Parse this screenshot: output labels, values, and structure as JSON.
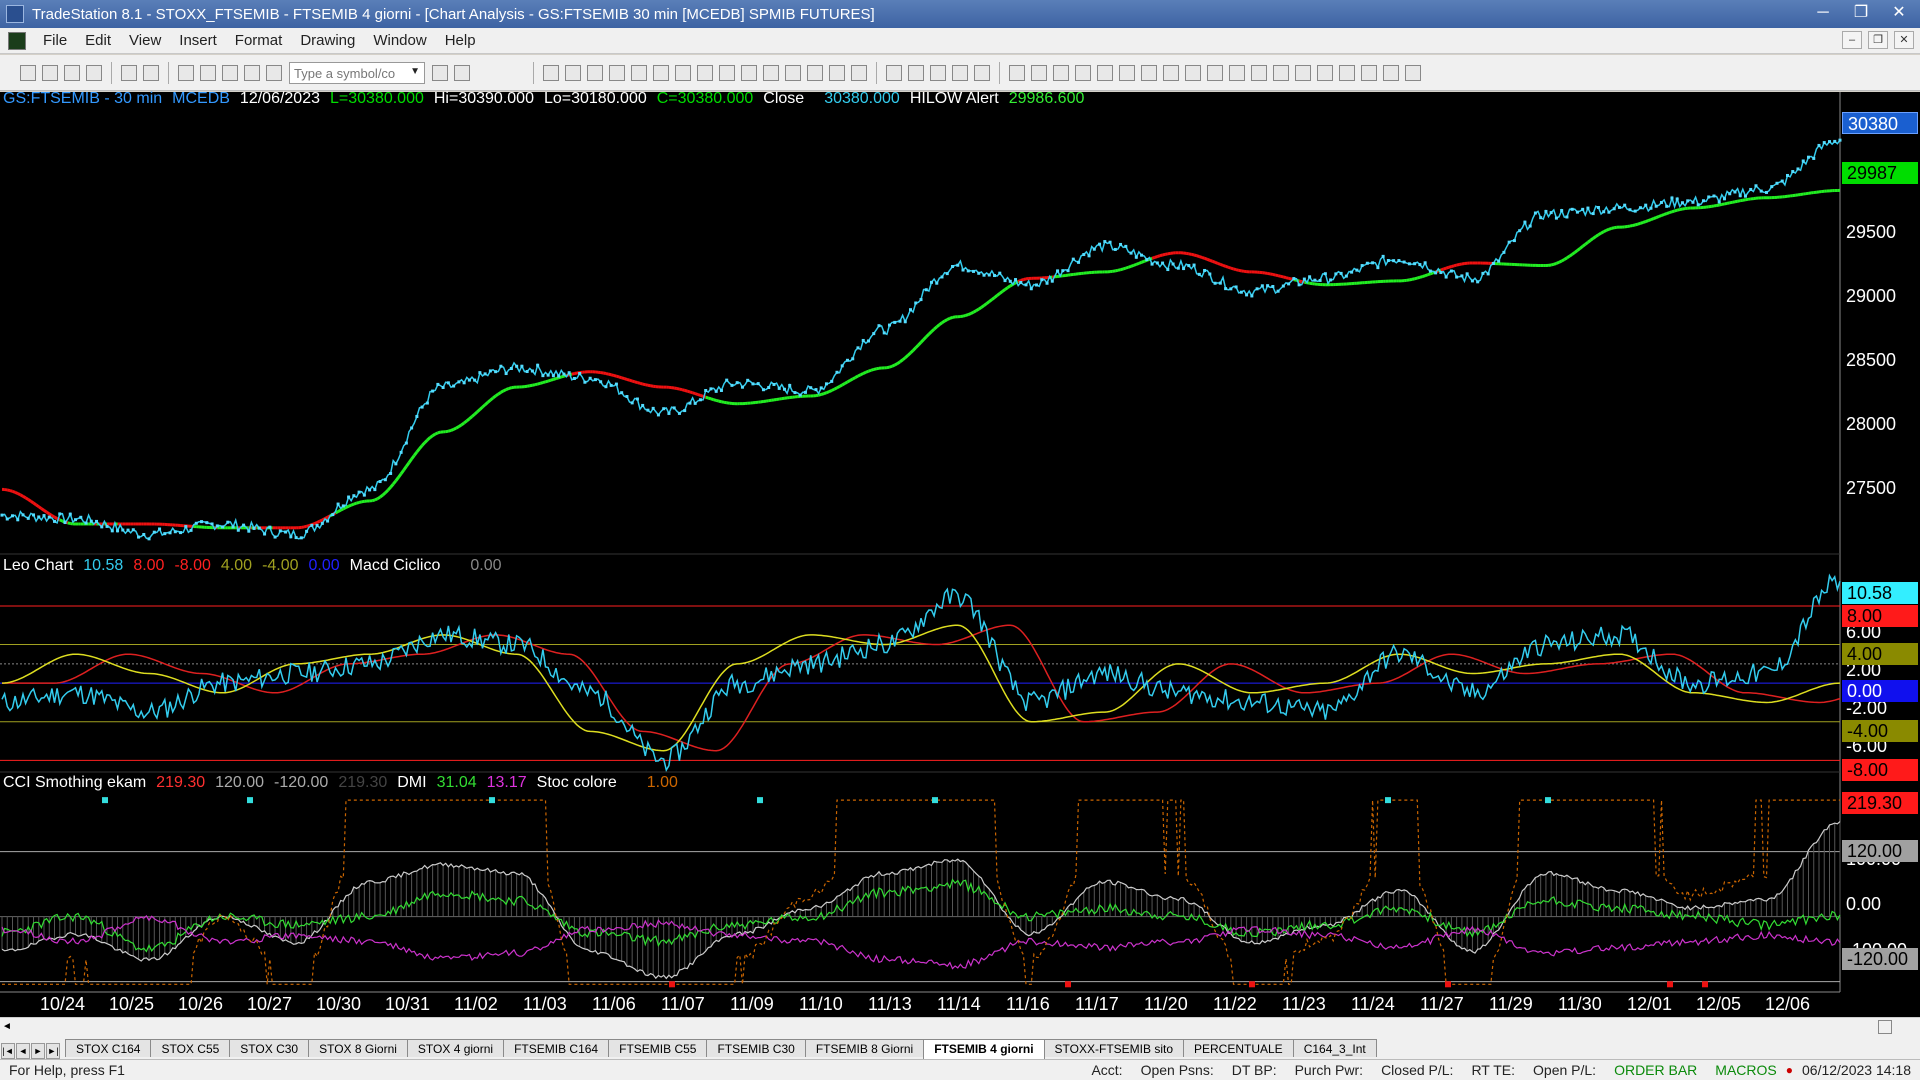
{
  "window": {
    "title": "TradeStation 8.1 - STOXX_FTSEMIB - FTSEMIB  4 giorni - [Chart Analysis - GS:FTSEMIB  30 min  [MCEDB] SPMIB FUTURES]",
    "minimize": "─",
    "maximize": "❐",
    "close": "✕"
  },
  "menu": {
    "items": [
      "File",
      "Edit",
      "View",
      "Insert",
      "Format",
      "Drawing",
      "Window",
      "Help"
    ],
    "mdi": [
      "–",
      "❐",
      "✕"
    ]
  },
  "toolbar": {
    "symbol_placeholder": "Type a symbol/co"
  },
  "price_pane": {
    "symbol": "GS:FTSEMIB - 30 min",
    "source": "MCEDB",
    "date": "12/06/2023",
    "last": "L=30380.000",
    "high": "Hi=30390.000",
    "low": "Lo=30180.000",
    "close_text": "C=30380.000",
    "close_label": "Close",
    "close_value": "30380.000",
    "hilow_label": "HILOW Alert",
    "hilow_value": "29986.600",
    "axis_labels": [
      "29500",
      "29000",
      "28500",
      "28000",
      "27500"
    ],
    "price_badge": "30380",
    "hilow_badge": "29987"
  },
  "leo_pane": {
    "title": "Leo Chart",
    "values": [
      {
        "text": "10.58",
        "color": "#33ccee"
      },
      {
        "text": "8.00",
        "color": "#ff2020"
      },
      {
        "text": "-8.00",
        "color": "#ff2020"
      },
      {
        "text": "4.00",
        "color": "#a0a020"
      },
      {
        "text": "-4.00",
        "color": "#a0a020"
      },
      {
        "text": "0.00",
        "color": "#2020ff"
      }
    ],
    "macd_label": "Macd Ciclico",
    "macd_value": "0.00",
    "axis_labels": [
      "6.00",
      "2.00",
      "-2.00",
      "-6.00"
    ],
    "badges": [
      {
        "text": "10.58",
        "bg": "#33eeff",
        "fg": "#000"
      },
      {
        "text": "8.00",
        "bg": "#ff1a1a",
        "fg": "#000"
      },
      {
        "text": "4.00",
        "bg": "#8a8a00",
        "fg": "#000"
      },
      {
        "text": "0.00",
        "bg": "#1010ee",
        "fg": "#fff"
      },
      {
        "text": "-4.00",
        "bg": "#8a8a00",
        "fg": "#000"
      },
      {
        "text": "-8.00",
        "bg": "#ff1a1a",
        "fg": "#000"
      }
    ]
  },
  "cci_pane": {
    "title": "CCI Smothing ekam",
    "v1": "219.30",
    "v2": "120.00",
    "v3": "-120.00",
    "v4": "219.30",
    "dmi_label": "DMI",
    "dmi1": "31.04",
    "dmi2": "13.17",
    "stoc_label": "Stoc colore",
    "stoc_value": "1.00",
    "axis_labels": [
      "100.00",
      "0.00",
      "-100.00"
    ],
    "badges": [
      {
        "text": "219.30",
        "bg": "#ff1a1a",
        "fg": "#000"
      },
      {
        "text": "120.00",
        "bg": "#a0a0a0",
        "fg": "#000"
      },
      {
        "text": "-120.00",
        "bg": "#a0a0a0",
        "fg": "#000"
      }
    ]
  },
  "x_axis": [
    "10/24",
    "10/25",
    "10/26",
    "10/27",
    "10/30",
    "10/31",
    "11/02",
    "11/03",
    "11/06",
    "11/07",
    "11/09",
    "11/10",
    "11/13",
    "11/14",
    "11/16",
    "11/17",
    "11/20",
    "11/22",
    "11/23",
    "11/24",
    "11/27",
    "11/29",
    "11/30",
    "12/01",
    "12/05",
    "12/06"
  ],
  "tabs": {
    "items": [
      "STOX C164",
      "STOX C55",
      "STOX  C30",
      "STOX  8 Giorni",
      "STOX 4 giorni",
      "FTSEMIB C164",
      "FTSEMIB C55",
      "FTSEMIB C30",
      "FTSEMIB  8 Giorni",
      "FTSEMIB  4 giorni",
      "STOXX-FTSEMIB sito",
      "PERCENTUALE",
      "C164_3_Int"
    ],
    "active": 9
  },
  "status": {
    "help": "For Help, press F1",
    "acct": "Acct:",
    "open_psns": "Open Psns:",
    "dt_bp": "DT BP:",
    "purch_pwr": "Purch Pwr:",
    "closed_pl": "Closed P/L:",
    "rt_te": "RT TE:",
    "open_pl": "Open P/L:",
    "order_bar": "ORDER BAR",
    "macros": "MACROS",
    "datetime": "06/12/2023 14:18"
  },
  "chart_data": [
    {
      "type": "line",
      "title": "GS:FTSEMIB - 30 min",
      "x": [
        "10/24",
        "10/25",
        "10/26",
        "10/27",
        "10/30",
        "10/31",
        "11/02",
        "11/03",
        "11/06",
        "11/07",
        "11/09",
        "11/10",
        "11/13",
        "11/14",
        "11/16",
        "11/17",
        "11/20",
        "11/22",
        "11/23",
        "11/24",
        "11/27",
        "11/29",
        "11/30",
        "12/01",
        "12/05",
        "12/06"
      ],
      "series": [
        {
          "name": "Close",
          "values": [
            27450,
            27420,
            27300,
            27380,
            27300,
            27650,
            28450,
            28600,
            28520,
            28250,
            28480,
            28420,
            28900,
            29400,
            29250,
            29550,
            29400,
            29200,
            29300,
            29450,
            29300,
            29800,
            29850,
            29900,
            30000,
            30380
          ]
        },
        {
          "name": "HILOW Alert",
          "values": [
            27650,
            27380,
            27380,
            27350,
            27350,
            27560,
            28100,
            28450,
            28570,
            28450,
            28320,
            28380,
            28600,
            29000,
            29300,
            29350,
            29500,
            29350,
            29250,
            29280,
            29420,
            29400,
            29700,
            29850,
            29930,
            29987
          ]
        }
      ],
      "ylim": [
        27200,
        30600
      ]
    },
    {
      "type": "line",
      "title": "Leo Chart",
      "series": [
        {
          "name": "Leo Chart",
          "values": [
            -2,
            -1,
            -3,
            0,
            1,
            2,
            5,
            4,
            -1,
            -8,
            0,
            2,
            4,
            9,
            -2,
            1,
            -1,
            -2,
            -3,
            3,
            -1,
            4,
            5,
            0,
            1,
            10.58
          ]
        },
        {
          "name": "Macd Ciclico",
          "values": [
            0,
            3,
            1,
            -1,
            2,
            3,
            5,
            3,
            -5,
            -7,
            2,
            5,
            4,
            6,
            -4,
            -3,
            2,
            -1,
            0,
            3,
            1,
            2,
            3,
            -1,
            -2,
            0
          ]
        }
      ],
      "ylim": [
        -9,
        11
      ]
    },
    {
      "type": "line",
      "title": "CCI Smothing ekam",
      "series": [
        {
          "name": "CCI Smothing ekam",
          "values": [
            -80,
            -40,
            -100,
            0,
            -60,
            80,
            120,
            100,
            -80,
            -140,
            -40,
            20,
            100,
            130,
            -40,
            80,
            40,
            -60,
            -20,
            60,
            -80,
            100,
            60,
            20,
            40,
            219.3
          ]
        },
        {
          "name": "DMI",
          "values": [
            20,
            30,
            10,
            30,
            25,
            30,
            45,
            40,
            20,
            15,
            25,
            30,
            45,
            50,
            30,
            35,
            30,
            20,
            25,
            35,
            20,
            40,
            35,
            30,
            25,
            31.04
          ]
        }
      ],
      "ylim": [
        -130,
        230
      ]
    }
  ]
}
